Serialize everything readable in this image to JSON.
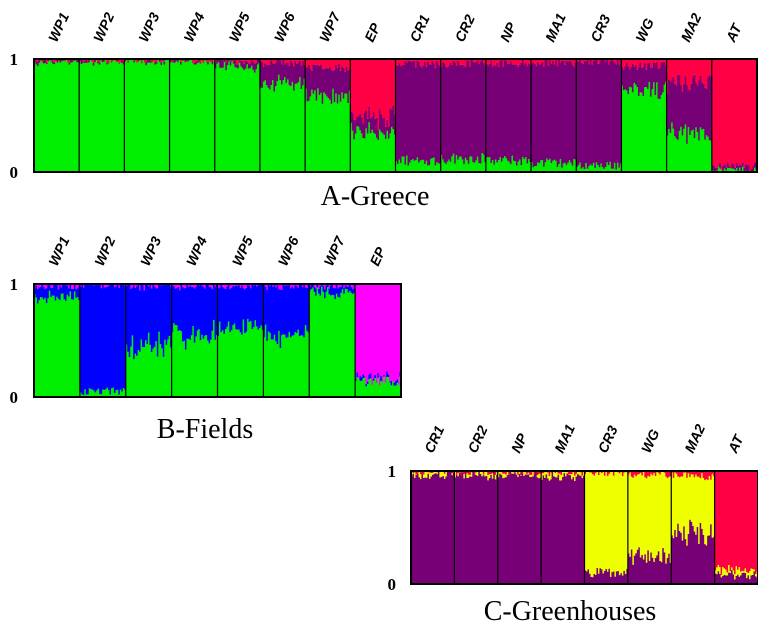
{
  "chart_data": [
    {
      "type": "bar",
      "caption": "A-Greece",
      "ylim": [
        0,
        1
      ],
      "yticks": [
        "1",
        "0"
      ],
      "colors": {
        "WP": "#00ee00",
        "EP": "#ff0044",
        "CR": "#770077",
        "AT": "#ff0044"
      },
      "populations": [
        "WP1",
        "WP2",
        "WP3",
        "WP4",
        "WP5",
        "WP6",
        "WP7",
        "EP",
        "CR1",
        "CR2",
        "NP",
        "MA1",
        "CR3",
        "WG",
        "MA2",
        "AT"
      ],
      "series": [
        {
          "color": "#00ee00",
          "values": [
            0.97,
            0.98,
            0.98,
            0.98,
            0.93,
            0.78,
            0.68,
            0.35,
            0.1,
            0.12,
            0.1,
            0.08,
            0.06,
            0.72,
            0.35,
            0.02
          ]
        },
        {
          "color": "#770077",
          "values": [
            0.02,
            0.01,
            0.01,
            0.01,
            0.05,
            0.18,
            0.25,
            0.15,
            0.85,
            0.84,
            0.86,
            0.88,
            0.92,
            0.22,
            0.45,
            0.03
          ]
        },
        {
          "color": "#ff0044",
          "values": [
            0.01,
            0.01,
            0.01,
            0.01,
            0.02,
            0.04,
            0.07,
            0.5,
            0.05,
            0.04,
            0.04,
            0.04,
            0.02,
            0.06,
            0.2,
            0.95
          ]
        }
      ]
    },
    {
      "type": "bar",
      "caption": "B-Fields",
      "ylim": [
        0,
        1
      ],
      "yticks": [
        "1",
        "0"
      ],
      "populations": [
        "WP1",
        "WP2",
        "WP3",
        "WP4",
        "WP5",
        "WP6",
        "WP7",
        "EP"
      ],
      "series": [
        {
          "color": "#00ee00",
          "values": [
            0.88,
            0.05,
            0.45,
            0.55,
            0.6,
            0.55,
            0.92,
            0.15
          ]
        },
        {
          "color": "#0000ff",
          "values": [
            0.1,
            0.94,
            0.53,
            0.43,
            0.38,
            0.43,
            0.06,
            0.02
          ]
        },
        {
          "color": "#ff00ff",
          "values": [
            0.02,
            0.01,
            0.02,
            0.02,
            0.02,
            0.02,
            0.02,
            0.83
          ]
        }
      ]
    },
    {
      "type": "bar",
      "caption": "C-Greenhouses",
      "ylim": [
        0,
        1
      ],
      "yticks": [
        "1",
        "0"
      ],
      "populations": [
        "CR1",
        "CR2",
        "NP",
        "MA1",
        "CR3",
        "WG",
        "MA2",
        "AT"
      ],
      "series": [
        {
          "color": "#770077",
          "values": [
            0.96,
            0.97,
            0.97,
            0.95,
            0.1,
            0.25,
            0.45,
            0.08
          ]
        },
        {
          "color": "#eeff00",
          "values": [
            0.03,
            0.02,
            0.02,
            0.03,
            0.88,
            0.72,
            0.5,
            0.05
          ]
        },
        {
          "color": "#ff0044",
          "values": [
            0.01,
            0.01,
            0.01,
            0.02,
            0.02,
            0.03,
            0.05,
            0.87
          ]
        }
      ]
    }
  ]
}
